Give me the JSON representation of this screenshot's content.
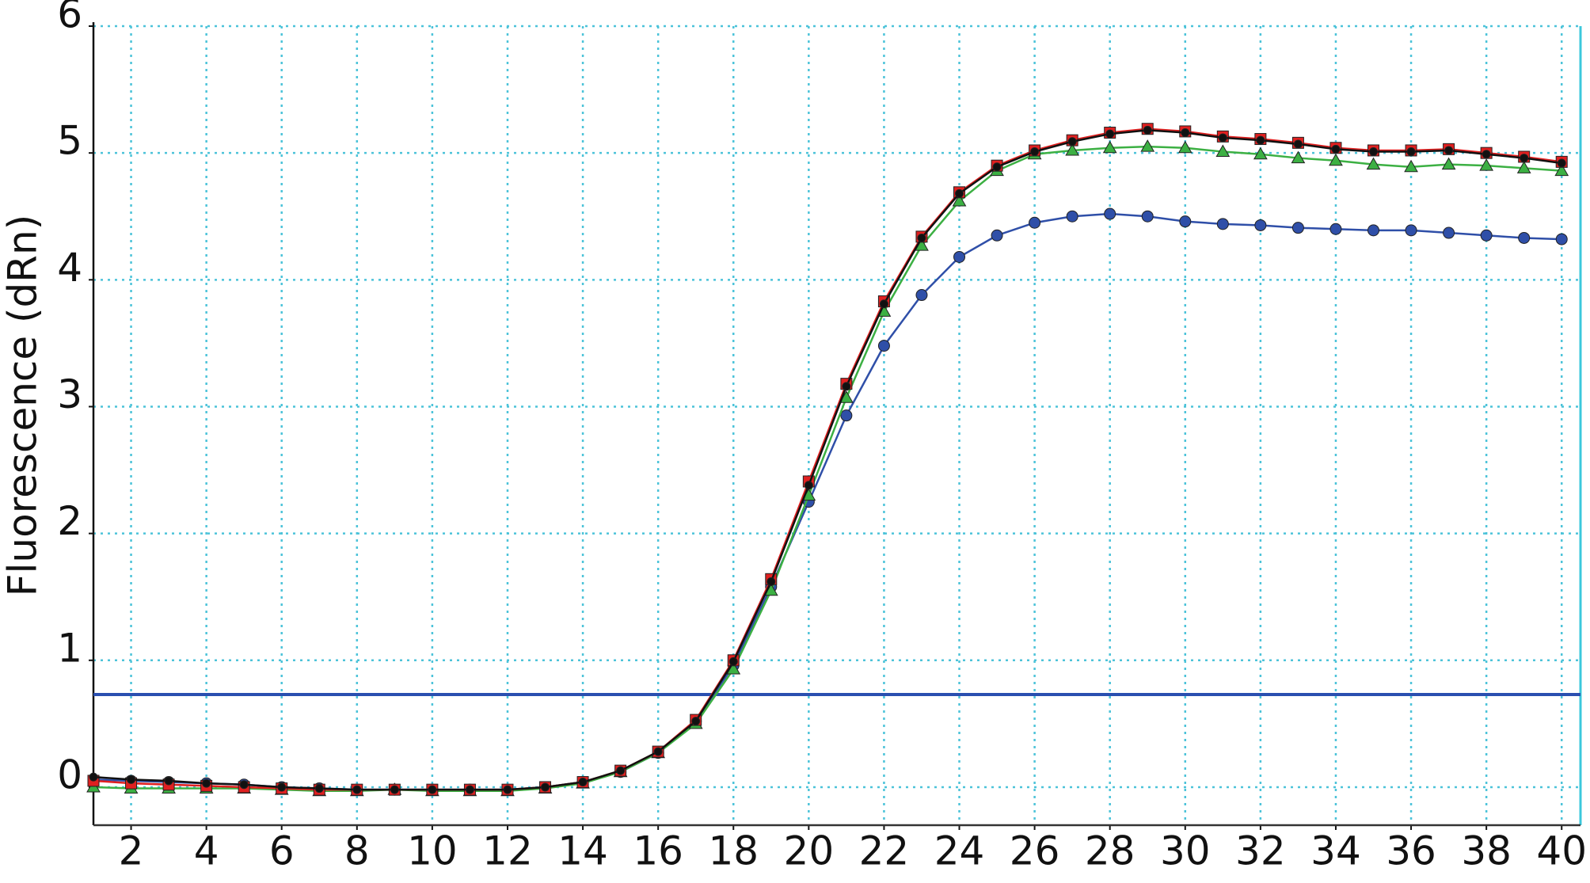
{
  "chart_data": {
    "type": "line",
    "y_label": "Fluorescence (dRn)",
    "x": [
      1,
      2,
      3,
      4,
      5,
      6,
      7,
      8,
      9,
      10,
      11,
      12,
      13,
      14,
      15,
      16,
      17,
      18,
      19,
      20,
      21,
      22,
      23,
      24,
      25,
      26,
      27,
      28,
      29,
      30,
      31,
      32,
      33,
      34,
      35,
      36,
      37,
      38,
      39,
      40
    ],
    "series": [
      {
        "color": "#2f4fa8",
        "marker": "circle",
        "values": [
          0.06,
          0.05,
          0.04,
          0.03,
          0.02,
          0.0,
          -0.01,
          -0.02,
          -0.02,
          -0.02,
          -0.02,
          -0.02,
          0.0,
          0.04,
          0.12,
          0.27,
          0.52,
          0.96,
          1.58,
          2.25,
          2.93,
          3.48,
          3.88,
          4.18,
          4.35,
          4.45,
          4.5,
          4.52,
          4.5,
          4.46,
          4.44,
          4.43,
          4.41,
          4.4,
          4.39,
          4.39,
          4.37,
          4.35,
          4.33,
          4.32
        ]
      },
      {
        "color": "#3cb043",
        "marker": "triangle",
        "values": [
          0.0,
          -0.01,
          -0.01,
          -0.01,
          -0.01,
          -0.02,
          -0.03,
          -0.03,
          -0.02,
          -0.03,
          -0.03,
          -0.03,
          -0.01,
          0.03,
          0.12,
          0.27,
          0.5,
          0.93,
          1.55,
          2.3,
          3.07,
          3.75,
          4.27,
          4.62,
          4.86,
          4.99,
          5.02,
          5.04,
          5.05,
          5.04,
          5.01,
          4.99,
          4.96,
          4.94,
          4.91,
          4.89,
          4.91,
          4.9,
          4.88,
          4.86
        ]
      },
      {
        "color": "#e02020",
        "marker": "square",
        "values": [
          0.05,
          0.03,
          0.02,
          0.01,
          0.0,
          -0.01,
          -0.02,
          -0.02,
          -0.02,
          -0.02,
          -0.02,
          -0.02,
          0.0,
          0.04,
          0.13,
          0.28,
          0.53,
          1.0,
          1.64,
          2.41,
          3.18,
          3.83,
          4.34,
          4.69,
          4.9,
          5.02,
          5.1,
          5.16,
          5.19,
          5.17,
          5.13,
          5.11,
          5.08,
          5.04,
          5.02,
          5.02,
          5.03,
          5.0,
          4.97,
          4.93
        ]
      },
      {
        "color": "#111111",
        "marker": "dot",
        "values": [
          0.08,
          0.06,
          0.05,
          0.03,
          0.02,
          0.0,
          -0.01,
          -0.02,
          -0.02,
          -0.02,
          -0.02,
          -0.02,
          0.0,
          0.04,
          0.13,
          0.28,
          0.52,
          0.99,
          1.62,
          2.38,
          3.16,
          3.81,
          4.33,
          4.68,
          4.89,
          5.01,
          5.09,
          5.15,
          5.18,
          5.16,
          5.12,
          5.1,
          5.07,
          5.03,
          5.01,
          5.01,
          5.02,
          4.99,
          4.96,
          4.92
        ]
      }
    ],
    "threshold": 0.73,
    "threshold_color": "#2a4fb0",
    "xlim": [
      1,
      40.5
    ],
    "ylim": [
      -0.3,
      6
    ],
    "xticks": [
      2,
      4,
      6,
      8,
      10,
      12,
      14,
      16,
      18,
      20,
      22,
      24,
      26,
      28,
      30,
      32,
      34,
      36,
      38,
      40
    ],
    "yticks": [
      0,
      1,
      2,
      3,
      4,
      5,
      6
    ],
    "grid": true,
    "grid_color": "#4cc3d9"
  }
}
